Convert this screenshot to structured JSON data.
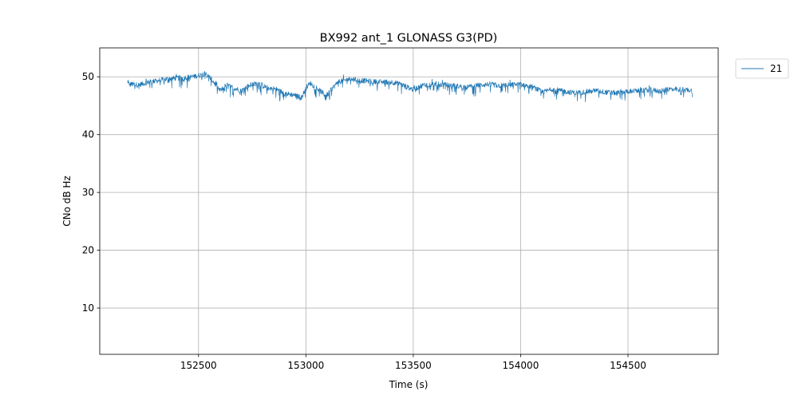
{
  "chart_data": {
    "type": "line",
    "title": "BX992 ant_1 GLONASS G3(PD)",
    "xlabel": "Time (s)",
    "ylabel": "CNo dB Hz",
    "xlim": [
      152040,
      154920
    ],
    "ylim": [
      2,
      55
    ],
    "xticks": [
      152500,
      153000,
      153500,
      154000,
      154500
    ],
    "yticks": [
      10,
      20,
      30,
      40,
      50
    ],
    "grid": true,
    "legend_position": "outside-top-right",
    "colors": {
      "series": "#1f77b4",
      "grid": "#b0b0b0",
      "axis": "#000000"
    },
    "series": [
      {
        "name": "21",
        "color": "#1f77b4",
        "x": [
          152170,
          152220,
          152270,
          152320,
          152370,
          152420,
          152470,
          152510,
          152530,
          152560,
          152580,
          152600,
          152630,
          152660,
          152700,
          152740,
          152780,
          152820,
          152860,
          152900,
          152940,
          152980,
          153000,
          153020,
          153050,
          153080,
          153100,
          153120,
          153150,
          153200,
          153250,
          153300,
          153350,
          153400,
          153450,
          153480,
          153500,
          153550,
          153600,
          153650,
          153700,
          153750,
          153800,
          153850,
          153900,
          153950,
          154000,
          154050,
          154080,
          154100,
          154150,
          154200,
          154250,
          154300,
          154350,
          154400,
          154450,
          154500,
          154550,
          154600,
          154650,
          154700,
          154750,
          154800
        ],
        "y": [
          48.8,
          48.6,
          49.1,
          49.4,
          49.7,
          49.8,
          50.0,
          50.3,
          50.6,
          49.6,
          48.6,
          47.6,
          48.6,
          48.1,
          47.6,
          48.6,
          48.9,
          48.1,
          47.9,
          47.1,
          46.9,
          46.4,
          48.1,
          48.9,
          48.1,
          47.1,
          46.9,
          47.9,
          49.1,
          49.6,
          49.4,
          49.2,
          49.1,
          49.1,
          48.6,
          48.1,
          47.8,
          48.6,
          48.7,
          48.6,
          48.4,
          48.2,
          48.5,
          48.7,
          48.5,
          48.6,
          48.7,
          48.3,
          47.8,
          47.3,
          47.9,
          47.5,
          47.2,
          47.4,
          47.6,
          47.3,
          47.2,
          47.5,
          47.6,
          47.8,
          47.5,
          47.9,
          47.8,
          47.6
        ]
      }
    ]
  }
}
